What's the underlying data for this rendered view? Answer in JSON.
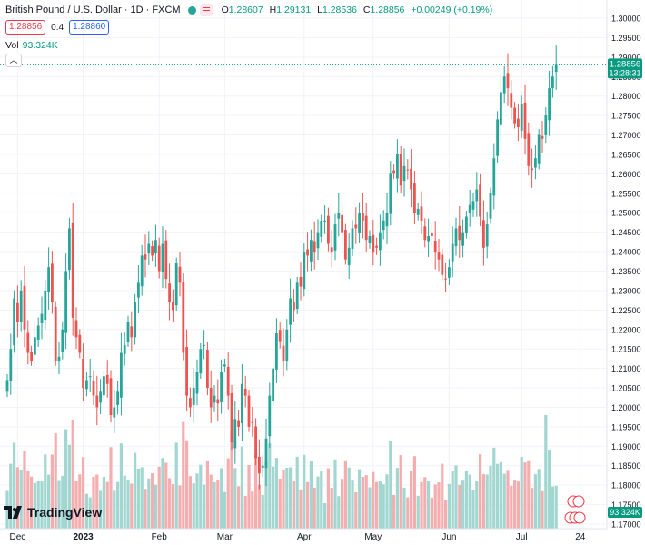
{
  "header": {
    "title": "British Pound / U.S. Dollar · 1D · FXCM",
    "ohlc": [
      {
        "k": "O",
        "v": "1.28607"
      },
      {
        "k": "H",
        "v": "1.29131"
      },
      {
        "k": "L",
        "v": "1.28536"
      },
      {
        "k": "C",
        "v": "1.28856"
      }
    ],
    "change": "+0.00249 (+0.19%)",
    "sell_price": "1.28856",
    "spread": "0.4",
    "buy_price": "1.28860"
  },
  "volume": {
    "label": "Vol",
    "value": "93.324K"
  },
  "collapse_icon": "chevron-up-icon",
  "price_label": {
    "price": "1.28856",
    "countdown": "13:28:31"
  },
  "volume_label": "93.324K",
  "brand": "TradingView",
  "colors": {
    "up": "#26a69a",
    "down": "#ef5350",
    "up_vol": "#a1d7d0",
    "down_vol": "#f5aeb0",
    "label_bg": "#089981"
  },
  "chart_data": {
    "type": "candlestick",
    "symbol": "GBPUSD",
    "interval": "1D",
    "ylim": [
      1.17,
      1.3
    ],
    "yticks": [
      "1.30000",
      "1.29500",
      "1.29000",
      "1.28500",
      "1.28000",
      "1.27500",
      "1.27000",
      "1.26500",
      "1.26000",
      "1.25500",
      "1.25000",
      "1.24500",
      "1.24000",
      "1.23500",
      "1.23000",
      "1.22500",
      "1.22000",
      "1.21500",
      "1.21000",
      "1.20500",
      "1.20000",
      "1.19500",
      "1.19000",
      "1.18500",
      "1.18000",
      "1.17500",
      "1.17000"
    ],
    "xticks": [
      {
        "label": "Dec",
        "index": 3
      },
      {
        "label": "2023",
        "index": 22
      },
      {
        "label": "Feb",
        "index": 44
      },
      {
        "label": "Mar",
        "index": 63
      },
      {
        "label": "Apr",
        "index": 86
      },
      {
        "label": "May",
        "index": 106
      },
      {
        "label": "Jun",
        "index": 128
      },
      {
        "label": "Jul",
        "index": 149
      },
      {
        "label": "24",
        "index": 166
      }
    ],
    "closes": [
      1.207,
      1.215,
      1.228,
      1.222,
      1.23,
      1.22,
      1.214,
      1.212,
      1.218,
      1.221,
      1.224,
      1.23,
      1.236,
      1.227,
      1.212,
      1.213,
      1.22,
      1.235,
      1.246,
      1.223,
      1.218,
      1.214,
      1.205,
      1.207,
      1.208,
      1.203,
      1.2,
      1.204,
      1.208,
      1.206,
      1.198,
      1.2,
      1.204,
      1.214,
      1.216,
      1.222,
      1.218,
      1.227,
      1.232,
      1.239,
      1.238,
      1.242,
      1.239,
      1.243,
      1.235,
      1.242,
      1.233,
      1.227,
      1.225,
      1.237,
      1.232,
      1.214,
      1.203,
      1.2,
      1.205,
      1.209,
      1.215,
      1.216,
      1.205,
      1.2,
      1.203,
      1.201,
      1.209,
      1.211,
      1.203,
      1.191,
      1.197,
      1.195,
      1.206,
      1.203,
      1.195,
      1.196,
      1.187,
      1.183,
      1.185,
      1.192,
      1.203,
      1.21,
      1.219,
      1.217,
      1.212,
      1.22,
      1.228,
      1.225,
      1.232,
      1.231,
      1.24,
      1.239,
      1.243,
      1.24,
      1.245,
      1.248,
      1.248,
      1.242,
      1.24,
      1.247,
      1.25,
      1.245,
      1.238,
      1.241,
      1.246,
      1.246,
      1.25,
      1.248,
      1.243,
      1.244,
      1.24,
      1.241,
      1.245,
      1.248,
      1.25,
      1.26,
      1.26,
      1.265,
      1.257,
      1.262,
      1.261,
      1.256,
      1.25,
      1.251,
      1.248,
      1.243,
      1.244,
      1.244,
      1.24,
      1.238,
      1.234,
      1.233,
      1.236,
      1.242,
      1.246,
      1.243,
      1.245,
      1.249,
      1.252,
      1.253,
      1.256,
      1.249,
      1.241,
      1.247,
      1.255,
      1.264,
      1.274,
      1.281,
      1.285,
      1.282,
      1.277,
      1.273,
      1.272,
      1.278,
      1.269,
      1.262,
      1.261,
      1.264,
      1.27,
      1.269,
      1.275,
      1.282,
      1.285,
      1.288
    ]
  }
}
